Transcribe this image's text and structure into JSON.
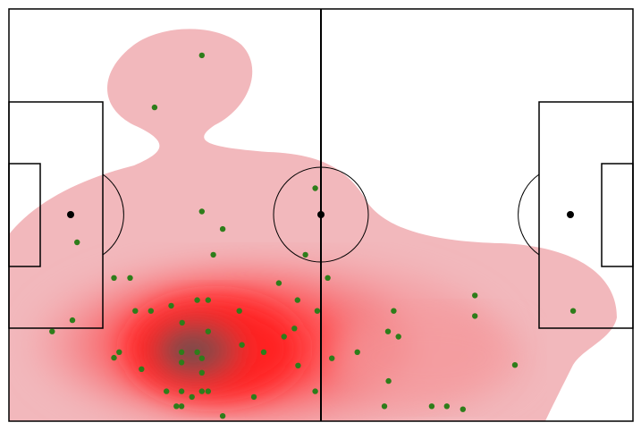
{
  "chart_data": {
    "type": "scatter",
    "subtype": "football-pitch-touch-heatmap",
    "title": "",
    "xlabel": "",
    "ylabel": "",
    "pitch": {
      "length": 120,
      "width": 80,
      "grid": false,
      "legend": "none"
    },
    "colors": {
      "density_low": "#f2b8bc",
      "density_high": "#ff1a1a",
      "density_core": "#7a4a4a",
      "points": "#2e7d1a",
      "lines": "#000000"
    },
    "points": [
      {
        "x": 37.1,
        "y": 9.0
      },
      {
        "x": 28.0,
        "y": 19.1
      },
      {
        "x": 58.9,
        "y": 34.8
      },
      {
        "x": 37.1,
        "y": 39.3
      },
      {
        "x": 41.1,
        "y": 42.7
      },
      {
        "x": 13.1,
        "y": 45.3
      },
      {
        "x": 39.3,
        "y": 47.7
      },
      {
        "x": 57.0,
        "y": 47.7
      },
      {
        "x": 20.2,
        "y": 52.2
      },
      {
        "x": 23.3,
        "y": 52.2
      },
      {
        "x": 51.9,
        "y": 53.2
      },
      {
        "x": 61.3,
        "y": 52.2
      },
      {
        "x": 89.6,
        "y": 55.6
      },
      {
        "x": 36.2,
        "y": 56.5
      },
      {
        "x": 38.3,
        "y": 56.5
      },
      {
        "x": 55.5,
        "y": 56.5
      },
      {
        "x": 31.2,
        "y": 57.6
      },
      {
        "x": 24.3,
        "y": 58.6
      },
      {
        "x": 27.3,
        "y": 58.6
      },
      {
        "x": 44.3,
        "y": 58.6
      },
      {
        "x": 59.3,
        "y": 58.6
      },
      {
        "x": 74.0,
        "y": 58.6
      },
      {
        "x": 108.5,
        "y": 58.6
      },
      {
        "x": 89.6,
        "y": 59.6
      },
      {
        "x": 12.2,
        "y": 60.4
      },
      {
        "x": 33.3,
        "y": 60.9
      },
      {
        "x": 54.9,
        "y": 62.0
      },
      {
        "x": 8.3,
        "y": 62.6
      },
      {
        "x": 38.3,
        "y": 62.6
      },
      {
        "x": 72.9,
        "y": 62.6
      },
      {
        "x": 74.9,
        "y": 63.6
      },
      {
        "x": 52.9,
        "y": 63.6
      },
      {
        "x": 44.8,
        "y": 65.2
      },
      {
        "x": 21.2,
        "y": 66.6
      },
      {
        "x": 33.2,
        "y": 66.6
      },
      {
        "x": 36.2,
        "y": 66.6
      },
      {
        "x": 49.0,
        "y": 66.6
      },
      {
        "x": 67.0,
        "y": 66.6
      },
      {
        "x": 20.2,
        "y": 67.7
      },
      {
        "x": 62.1,
        "y": 67.8
      },
      {
        "x": 37.1,
        "y": 67.8
      },
      {
        "x": 33.2,
        "y": 68.6
      },
      {
        "x": 97.3,
        "y": 69.1
      },
      {
        "x": 55.6,
        "y": 69.2
      },
      {
        "x": 25.5,
        "y": 69.9
      },
      {
        "x": 37.1,
        "y": 70.6
      },
      {
        "x": 73.0,
        "y": 72.2
      },
      {
        "x": 30.3,
        "y": 74.2
      },
      {
        "x": 33.2,
        "y": 74.2
      },
      {
        "x": 37.1,
        "y": 74.2
      },
      {
        "x": 38.3,
        "y": 74.2
      },
      {
        "x": 58.9,
        "y": 74.2
      },
      {
        "x": 35.2,
        "y": 75.3
      },
      {
        "x": 47.1,
        "y": 75.3
      },
      {
        "x": 32.2,
        "y": 77.1
      },
      {
        "x": 33.2,
        "y": 77.1
      },
      {
        "x": 72.2,
        "y": 77.1
      },
      {
        "x": 81.3,
        "y": 77.1
      },
      {
        "x": 84.2,
        "y": 77.1
      },
      {
        "x": 87.3,
        "y": 77.7
      },
      {
        "x": 41.1,
        "y": 79.0
      }
    ]
  }
}
